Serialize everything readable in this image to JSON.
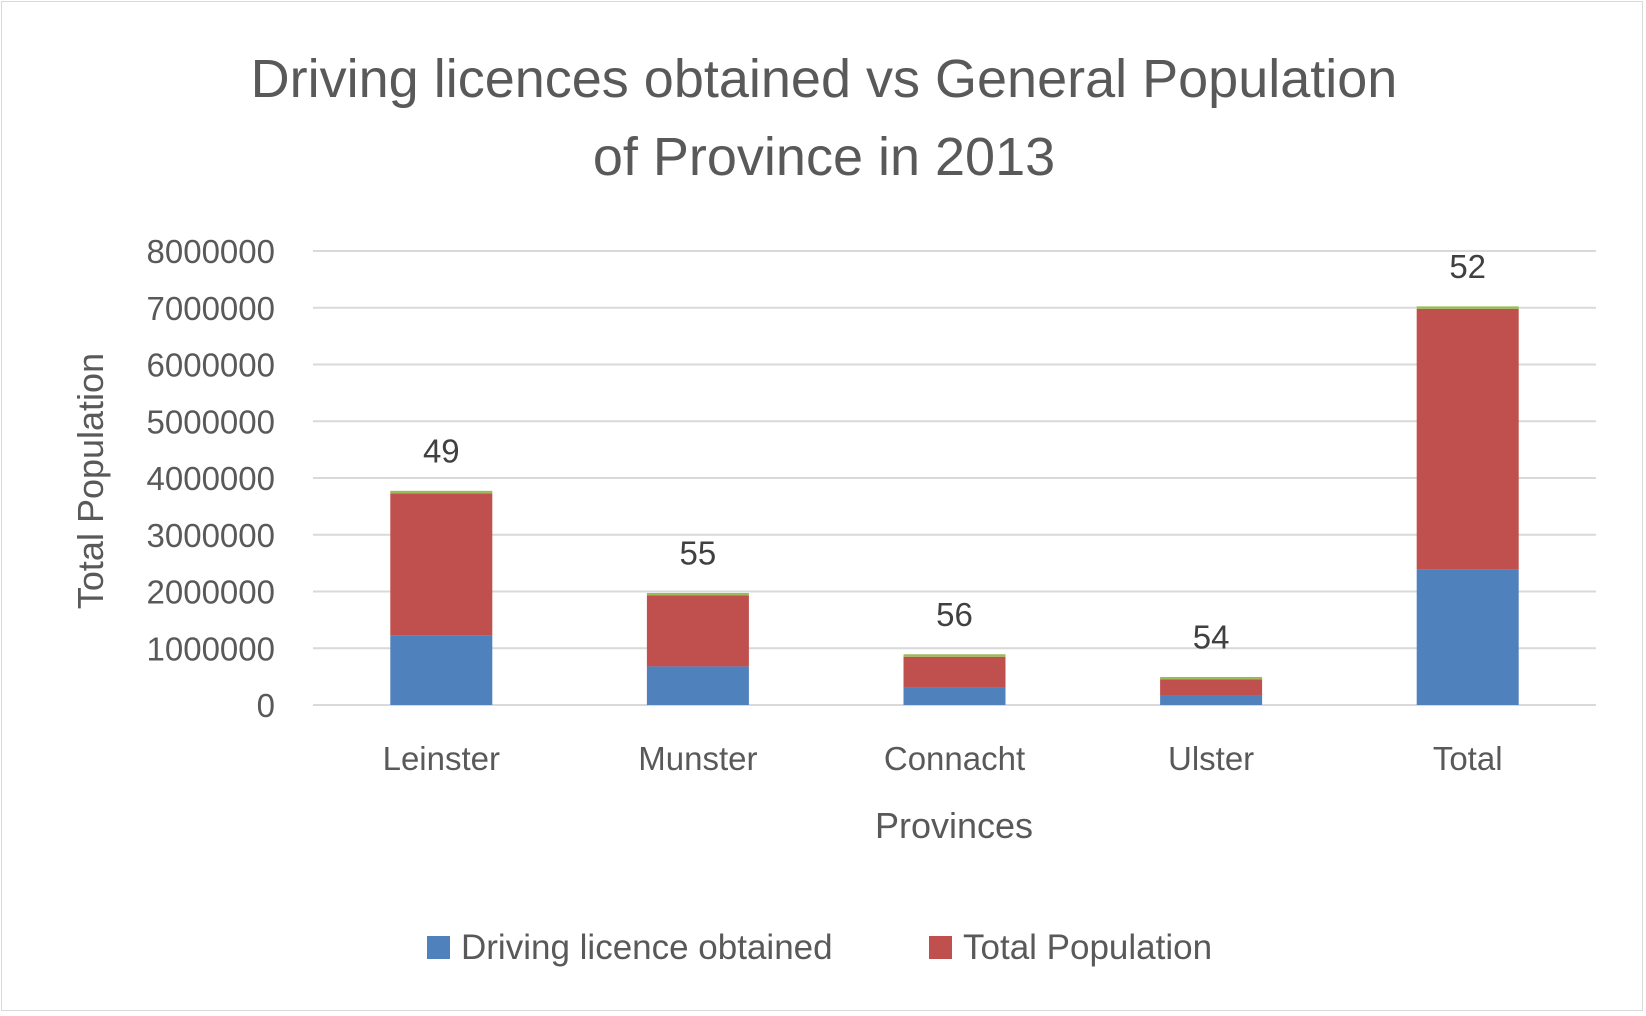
{
  "chart_data": {
    "type": "bar",
    "stacked": true,
    "title": "Driving licences obtained vs General Population of Province in 2013",
    "title_lines": [
      "Driving licences obtained vs General Population",
      "of Province in 2013"
    ],
    "xlabel": "Provinces",
    "ylabel": "Total Population",
    "categories": [
      "Leinster",
      "Munster",
      "Connacht",
      "Ulster",
      "Total"
    ],
    "series": [
      {
        "name": "Driving licence obtained",
        "color": "#4f81bd",
        "values": [
          1220000,
          680000,
          310000,
          160000,
          2390000
        ]
      },
      {
        "name": "Total Population",
        "color": "#c0504d",
        "values": [
          2510000,
          1250000,
          540000,
          290000,
          4590000
        ]
      },
      {
        "color": "#9bbb59",
        "values": [
          49,
          55,
          56,
          54,
          52
        ]
      }
    ],
    "data_labels": [
      "49",
      "55",
      "56",
      "54",
      "52"
    ],
    "ylim": [
      0,
      8000000
    ],
    "yticks": [
      0,
      1000000,
      2000000,
      3000000,
      4000000,
      5000000,
      6000000,
      7000000,
      8000000
    ],
    "ytick_labels": [
      "0",
      "1000000",
      "2000000",
      "3000000",
      "4000000",
      "5000000",
      "6000000",
      "7000000",
      "8000000"
    ],
    "grid": true,
    "legend": "bottom",
    "legend_entries": [
      "Driving licence obtained",
      "Total Population"
    ]
  }
}
